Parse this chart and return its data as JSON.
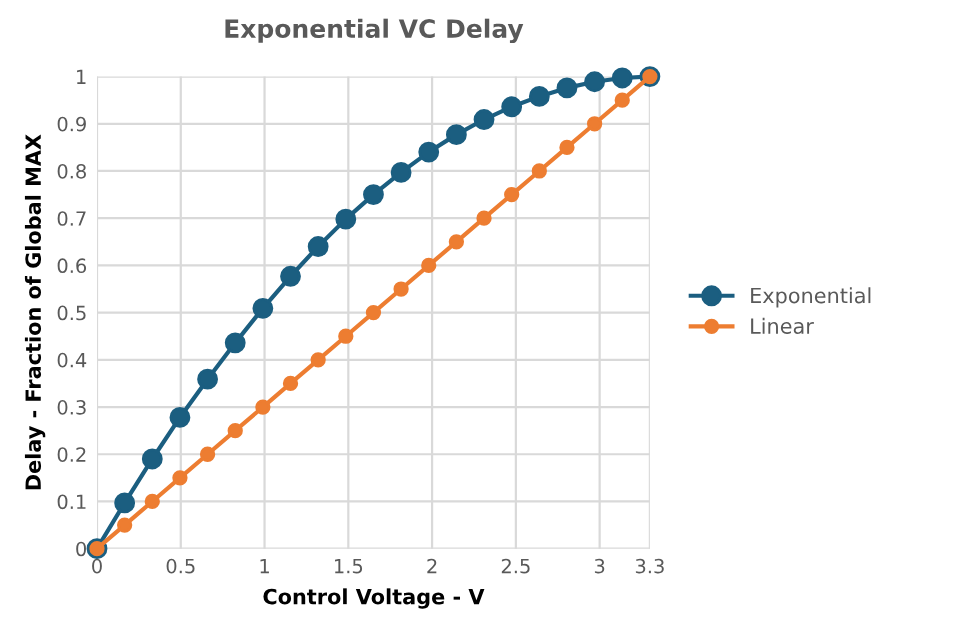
{
  "chart_data": {
    "type": "line",
    "title": "Exponential VC Delay",
    "xlabel": "Control Voltage - V",
    "ylabel": "Delay - Fraction of Global MAX",
    "x": [
      0,
      0.165,
      0.33,
      0.495,
      0.66,
      0.825,
      0.99,
      1.155,
      1.32,
      1.485,
      1.65,
      1.815,
      1.98,
      2.145,
      2.31,
      2.475,
      2.64,
      2.805,
      2.97,
      3.135,
      3.3
    ],
    "series": [
      {
        "name": "Exponential",
        "color": "#1b5e80",
        "values": [
          0,
          0.097,
          0.19,
          0.278,
          0.359,
          0.436,
          0.509,
          0.577,
          0.64,
          0.698,
          0.75,
          0.797,
          0.84,
          0.877,
          0.909,
          0.936,
          0.958,
          0.976,
          0.989,
          0.997,
          1.0
        ]
      },
      {
        "name": "Linear",
        "color": "#ed7d31",
        "values": [
          0,
          0.05,
          0.1,
          0.15,
          0.2,
          0.25,
          0.3,
          0.35,
          0.4,
          0.45,
          0.5,
          0.55,
          0.6,
          0.65,
          0.7,
          0.75,
          0.8,
          0.85,
          0.9,
          0.95,
          1.0
        ]
      }
    ],
    "xlim": [
      0,
      3.3
    ],
    "xticks": [
      0,
      0.5,
      1,
      1.5,
      2,
      2.5,
      3,
      3.3
    ],
    "ylim": [
      0,
      1
    ],
    "yticks": [
      0,
      0.1,
      0.2,
      0.3,
      0.4,
      0.5,
      0.6,
      0.7,
      0.8,
      0.9,
      1
    ],
    "grid": true,
    "legend": "right",
    "marker": "circle",
    "line_style": "solid"
  }
}
